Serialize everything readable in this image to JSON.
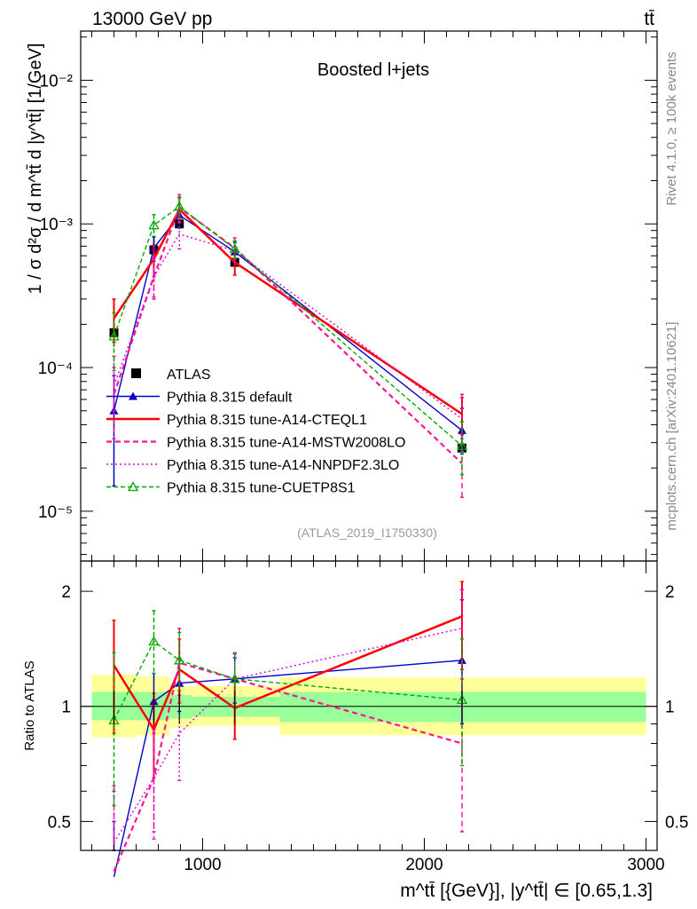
{
  "header": {
    "left": "13000 GeV pp",
    "right": "tt̄"
  },
  "side_labels": {
    "rivet": "Rivet 4.1.0, ≥ 100k events",
    "mcplots": "mcplots.cern.ch [arXiv:2401.10621]"
  },
  "chart_data": {
    "type": "line",
    "title": "Boosted l+jets",
    "analysis_tag": "(ATLAS_2019_I1750330)",
    "ylabel": "1 / σ d²σ / d m^tt̄ d |y^tt̄| [1/GeV]",
    "xlabel": "m^tt̄ [{GeV}], |y^tt̄| ∈ [0.65,1.3]",
    "ratio_ylabel": "Ratio to ATLAS",
    "xlim": [
      450,
      3050
    ],
    "ylim": [
      4.5e-06,
      0.022
    ],
    "yscale": "log",
    "ratio_ylim": [
      0.42,
      2.4
    ],
    "x_ticks": [
      1000,
      2000,
      3000
    ],
    "x_tick_labels": [
      "1000",
      "2000",
      "3000"
    ],
    "y_tick_labels": [
      "10⁻⁵",
      "10⁻⁴",
      "10⁻³",
      "10⁻²"
    ],
    "ratio_tick_labels": [
      "0.5",
      "1",
      "2"
    ],
    "x": [
      600,
      780,
      895,
      1145,
      2170
    ],
    "bin_edges": [
      500,
      700,
      850,
      950,
      1350,
      3000
    ],
    "band_inner": [
      [
        0.92,
        1.09
      ],
      [
        0.92,
        1.09
      ],
      [
        0.93,
        1.07
      ],
      [
        0.94,
        1.06
      ],
      [
        0.91,
        1.09
      ]
    ],
    "band_outer": [
      [
        0.83,
        1.21
      ],
      [
        0.84,
        1.2
      ],
      [
        0.88,
        1.13
      ],
      [
        0.89,
        1.13
      ],
      [
        0.84,
        1.19
      ]
    ],
    "legend": [
      "ATLAS",
      "Pythia 8.315 default",
      "Pythia 8.315 tune-A14-CTEQL1",
      "Pythia 8.315 tune-A14-MSTW2008LO",
      "Pythia 8.315 tune-A14-NNPDF2.3LO",
      "Pythia 8.315 tune-CUETP8S1"
    ],
    "data": {
      "name": "ATLAS",
      "values": [
        0.000175,
        0.00066,
        0.001,
        0.00054,
        2.75e-05
      ],
      "color": "#000000"
    },
    "series": [
      {
        "name": "Pythia 8.315 default",
        "color": "#0000cc",
        "dash": "",
        "marker": "triangle-filled",
        "values": [
          5e-05,
          0.00068,
          0.00115,
          0.00064,
          3.65e-05
        ],
        "err_lo": [
          1.5e-05,
          0.00055,
          0.00095,
          0.00055,
          2.5e-05
        ],
        "err_hi": [
          8.8e-05,
          0.00081,
          0.00137,
          0.00074,
          5.2e-05
        ]
      },
      {
        "name": "Pythia 8.315 tune-A14-CTEQL1",
        "color": "#ff0000",
        "dash": "",
        "marker": "none",
        "values": [
          0.00022,
          0.00057,
          0.00126,
          0.00054,
          4.75e-05
        ],
        "err_lo": [
          0.00015,
          0.00043,
          0.00102,
          0.00044,
          3.4e-05
        ],
        "err_hi": [
          0.0003,
          0.00071,
          0.00152,
          0.00064,
          6.2e-05
        ]
      },
      {
        "name": "Pythia 8.315 tune-A14-MSTW2008LO",
        "color": "#ff1493",
        "dash": "6 4",
        "marker": "none",
        "values": [
          6.5e-05,
          0.00043,
          0.0013,
          0.00068,
          2.15e-05
        ],
        "err_lo": [
          3.2e-05,
          0.00031,
          0.00103,
          0.00057,
          1.25e-05
        ],
        "err_hi": [
          0.00012,
          0.00057,
          0.0016,
          0.0008,
          3.2e-05
        ]
      },
      {
        "name": "Pythia 8.315 tune-A14-NNPDF2.3LO",
        "color": "#dd00dd",
        "dash": "2 3",
        "marker": "none",
        "values": [
          7.5e-05,
          0.00043,
          0.00085,
          0.00065,
          4.4e-05
        ],
        "err_lo": [
          5e-05,
          0.0003,
          0.00067,
          0.00054,
          2.6e-05
        ],
        "err_hi": [
          0.0001,
          0.00058,
          0.00103,
          0.00076,
          6.5e-05
        ]
      },
      {
        "name": "Pythia 8.315 tune-CUETP8S1",
        "color": "#00aa00",
        "dash": "5 3",
        "marker": "triangle-open",
        "values": [
          0.000165,
          0.00098,
          0.00132,
          0.00067,
          2.85e-05
        ],
        "err_lo": [
          9.5e-05,
          0.00082,
          0.0011,
          0.00058,
          1.8e-05
        ],
        "err_hi": [
          0.00024,
          0.00116,
          0.00154,
          0.00076,
          4.2e-05
        ]
      }
    ],
    "ratio_series": [
      {
        "values": [
          0.28,
          1.03,
          1.15,
          1.18,
          1.32
        ],
        "err_lo": [
          0.1,
          0.85,
          0.97,
          1.02,
          0.9
        ],
        "err_hi": [
          0.5,
          1.22,
          1.33,
          1.34,
          1.9
        ]
      },
      {
        "values": [
          1.28,
          0.87,
          1.25,
          0.99,
          1.72
        ],
        "err_lo": [
          0.85,
          0.65,
          1.02,
          0.82,
          1.25
        ],
        "err_hi": [
          1.68,
          1.08,
          1.5,
          1.18,
          2.12
        ]
      },
      {
        "values": [
          0.37,
          0.65,
          1.3,
          1.18,
          0.8
        ],
        "err_lo": [
          0.17,
          0.47,
          1.02,
          1.0,
          0.47
        ],
        "err_hi": [
          0.62,
          0.85,
          1.6,
          1.38,
          1.18
        ]
      },
      {
        "values": [
          0.44,
          0.65,
          0.85,
          1.18,
          1.6
        ],
        "err_lo": [
          0.29,
          0.45,
          0.64,
          1.0,
          1.0
        ],
        "err_hi": [
          0.6,
          0.87,
          1.07,
          1.38,
          2.02
        ]
      },
      {
        "values": [
          0.92,
          1.48,
          1.32,
          1.18,
          1.04
        ],
        "err_lo": [
          0.55,
          1.22,
          1.1,
          1.0,
          0.7
        ],
        "err_hi": [
          1.38,
          1.78,
          1.56,
          1.37,
          1.5
        ]
      }
    ],
    "data_ratio_err": [
      0.2,
      0.2,
      0.08,
      0.08,
      0.1
    ]
  }
}
